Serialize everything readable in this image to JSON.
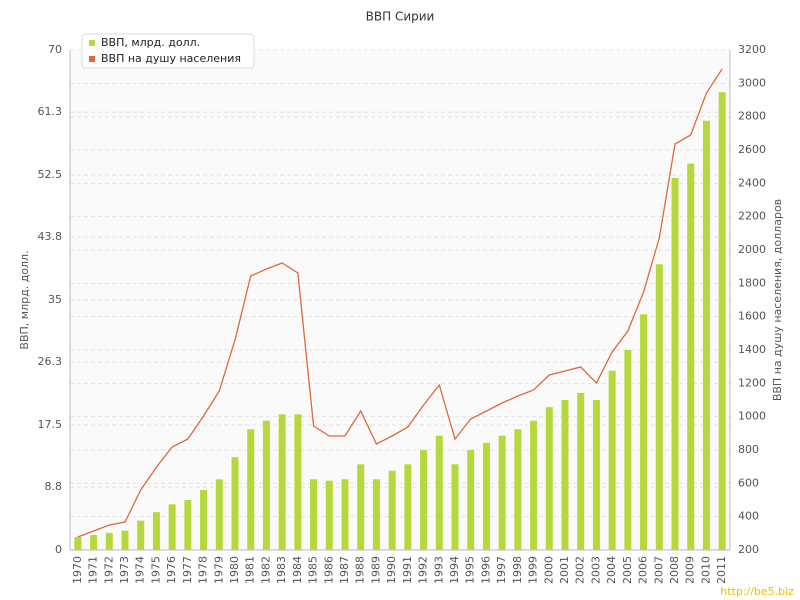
{
  "chart_data": {
    "type": "bar-line",
    "title": "ВВП Сирии",
    "y_label": "ВВП, млрд. долл.",
    "y2_label": "ВВП на душу населения, долларов",
    "watermark": "http://be5.biz",
    "categories": [
      "1970",
      "1971",
      "1972",
      "1973",
      "1974",
      "1975",
      "1976",
      "1977",
      "1978",
      "1979",
      "1980",
      "1981",
      "1982",
      "1983",
      "1984",
      "1985",
      "1986",
      "1987",
      "1988",
      "1989",
      "1990",
      "1991",
      "1992",
      "1993",
      "1994",
      "1995",
      "1996",
      "1997",
      "1998",
      "1999",
      "2000",
      "2001",
      "2002",
      "2003",
      "2004",
      "2005",
      "2006",
      "2007",
      "2008",
      "2009",
      "2010",
      "2011"
    ],
    "series": [
      {
        "name": "ВВП, млрд. долл.",
        "color": "#b5d93c",
        "type": "bar",
        "values": [
          1.8,
          2.1,
          2.4,
          2.7,
          4.1,
          5.3,
          6.4,
          7.0,
          8.4,
          9.9,
          13.0,
          16.9,
          18.1,
          19.0,
          19.0,
          9.9,
          9.7,
          9.9,
          12.0,
          9.9,
          11.1,
          12.0,
          14.0,
          16.0,
          12.0,
          14.0,
          15.0,
          16.0,
          16.9,
          18.1,
          20.0,
          21.0,
          22.0,
          21.0,
          25.1,
          28.0,
          33.0,
          40.0,
          52.1,
          54.1,
          60.1,
          64.1
        ]
      },
      {
        "name": "ВВП на душу населения",
        "color": "#e0683a",
        "type": "line",
        "axis": "y2",
        "values": [
          278,
          314,
          350,
          368,
          560,
          698,
          818,
          866,
          1004,
          1154,
          1460,
          1844,
          1886,
          1922,
          1862,
          944,
          884,
          884,
          1034,
          836,
          884,
          938,
          1070,
          1190,
          866,
          986,
          1034,
          1082,
          1124,
          1160,
          1250,
          1274,
          1298,
          1202,
          1388,
          1514,
          1748,
          2072,
          2636,
          2690,
          2942,
          3086
        ]
      }
    ],
    "ylim": [
      0,
      70
    ],
    "yticks": [
      0,
      8.8,
      17.5,
      26.3,
      35,
      43.8,
      52.5,
      61.3,
      70
    ],
    "y2lim": [
      200,
      3200
    ],
    "y2ticks": [
      200,
      400,
      600,
      800,
      1000,
      1200,
      1400,
      1600,
      1800,
      2000,
      2200,
      2400,
      2600,
      2800,
      3000,
      3200
    ],
    "grid": true,
    "legend": "top-left"
  }
}
